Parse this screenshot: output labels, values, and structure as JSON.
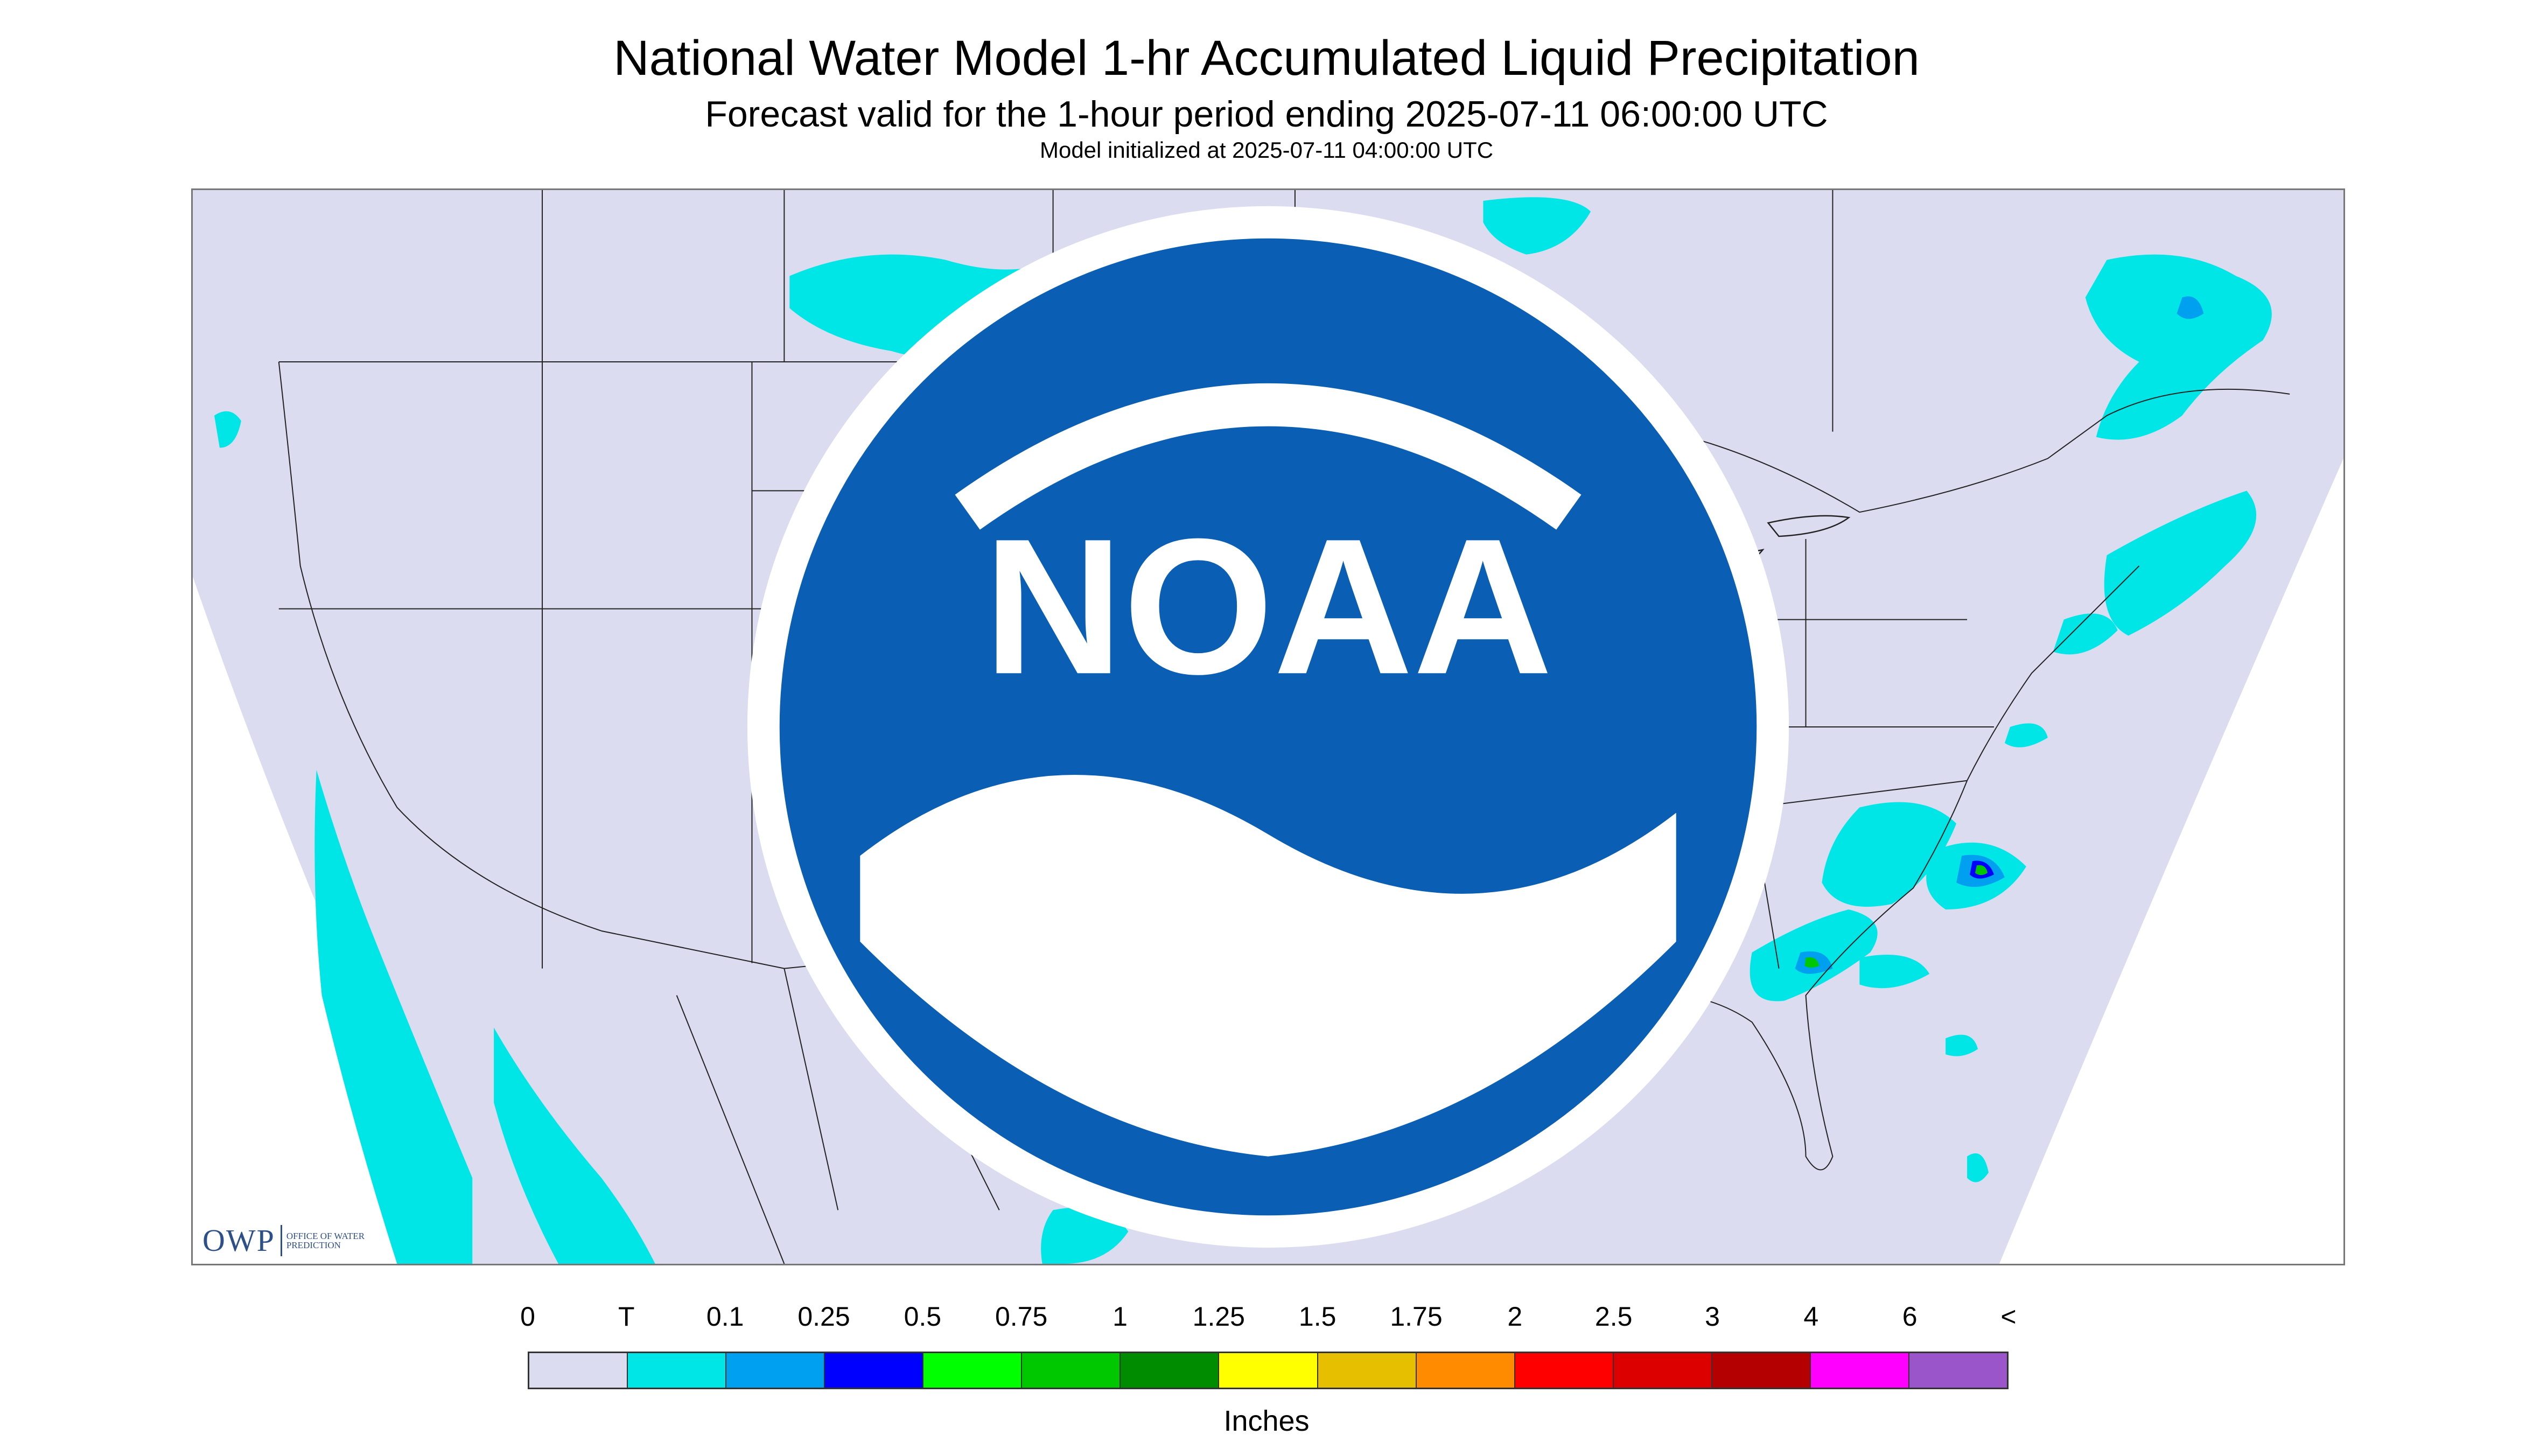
{
  "header": {
    "title": "National Water Model 1-hr Accumulated Liquid Precipitation",
    "subtitle": "Forecast valid for the 1-hour period ending 2025-07-11 06:00:00 UTC",
    "init": "Model initialized at 2025-07-11 04:00:00 UTC"
  },
  "logos": {
    "owp_mark": "OWP",
    "owp_text": "Office of Water Prediction",
    "noaa": "NOAA"
  },
  "legend": {
    "labels": [
      "0",
      "T",
      "0.1",
      "0.25",
      "0.5",
      "0.75",
      "1",
      "1.25",
      "1.5",
      "1.75",
      "2",
      "2.5",
      "3",
      "4",
      "6",
      "<"
    ],
    "colors": [
      "#dcdcf0",
      "#00e6e6",
      "#00a0f0",
      "#0000ff",
      "#00ff00",
      "#00c800",
      "#008c00",
      "#ffff00",
      "#e6c000",
      "#ff8c00",
      "#ff0000",
      "#dc0000",
      "#b40000",
      "#ff00ff",
      "#9955c9"
    ],
    "units": "Inches"
  },
  "map": {
    "background_color": "#dcdcf0",
    "outside_color": "#ffffff",
    "precip_trace_color": "#00e6e6",
    "precip_light_color": "#00a0f0",
    "precip_mod_color": "#0000ff",
    "precip_heavy_color": "#00c800"
  }
}
